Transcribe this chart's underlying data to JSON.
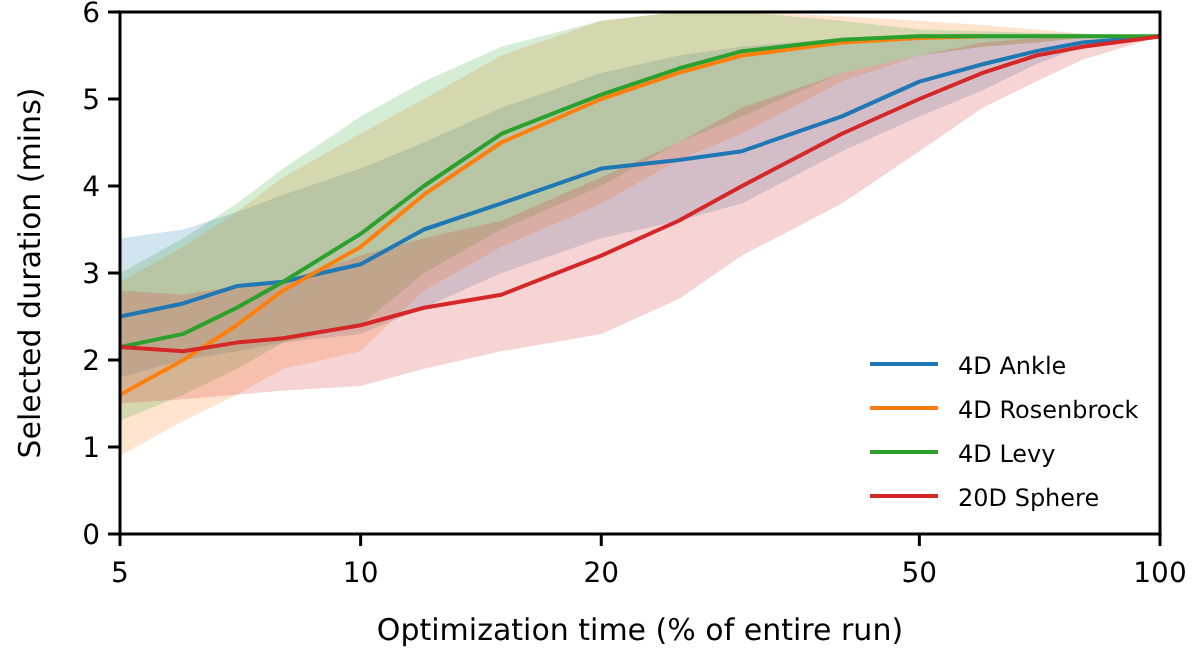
{
  "chart_data": {
    "type": "line",
    "xlabel": "Optimization time (% of entire run)",
    "ylabel": "Selected duration (mins)",
    "log": "x",
    "xlim": [
      5,
      100
    ],
    "xticks": [
      5,
      10,
      20,
      50,
      100
    ],
    "ylim": [
      0,
      6
    ],
    "yticks": [
      0,
      1,
      2,
      3,
      4,
      5,
      6
    ],
    "grid": false,
    "legend": "bottom right",
    "x": [
      5,
      6,
      7,
      8,
      10,
      12,
      15,
      20,
      25,
      30,
      40,
      50,
      60,
      70,
      80,
      100
    ],
    "series": [
      {
        "name": "4D Ankle",
        "color": "#1f77b4",
        "values": [
          2.5,
          2.65,
          2.85,
          2.9,
          3.1,
          3.5,
          3.8,
          4.2,
          4.3,
          4.4,
          4.8,
          5.2,
          5.4,
          5.55,
          5.65,
          5.72
        ],
        "lower": [
          1.8,
          2.0,
          2.1,
          2.2,
          2.3,
          2.6,
          3.0,
          3.4,
          3.6,
          3.8,
          4.4,
          4.8,
          5.1,
          5.4,
          5.6,
          5.72
        ],
        "upper": [
          3.4,
          3.5,
          3.7,
          3.9,
          4.2,
          4.5,
          4.9,
          5.3,
          5.5,
          5.6,
          5.7,
          5.75,
          5.75,
          5.75,
          5.75,
          5.72
        ]
      },
      {
        "name": "4D Rosenbrock",
        "color": "#ff7f0e",
        "values": [
          1.6,
          2.0,
          2.4,
          2.8,
          3.3,
          3.9,
          4.5,
          5.0,
          5.3,
          5.5,
          5.65,
          5.7,
          5.72,
          null,
          null,
          null
        ],
        "lower": [
          0.9,
          1.3,
          1.6,
          1.9,
          2.1,
          2.8,
          3.3,
          3.8,
          4.3,
          4.6,
          5.2,
          5.5,
          5.6,
          5.65,
          5.7,
          5.72
        ],
        "upper": [
          2.9,
          3.3,
          3.7,
          4.1,
          4.6,
          5.0,
          5.5,
          5.9,
          6.0,
          6.0,
          5.95,
          5.9,
          5.85,
          5.8,
          5.75,
          5.72
        ]
      },
      {
        "name": "4D Levy",
        "color": "#2ca02c",
        "values": [
          2.15,
          2.3,
          2.6,
          2.9,
          3.45,
          4.0,
          4.6,
          5.05,
          5.35,
          5.55,
          5.68,
          5.72,
          5.72,
          5.72,
          5.72,
          5.72
        ],
        "lower": [
          1.3,
          1.6,
          1.9,
          2.2,
          2.4,
          3.0,
          3.5,
          4.0,
          4.5,
          4.8,
          5.3,
          5.5,
          5.6,
          5.65,
          5.7,
          5.72
        ],
        "upper": [
          3.0,
          3.4,
          3.8,
          4.2,
          4.8,
          5.2,
          5.6,
          5.9,
          6.0,
          6.0,
          5.9,
          5.8,
          5.78,
          5.76,
          5.75,
          5.72
        ]
      },
      {
        "name": "20D Sphere",
        "color": "#d62728",
        "values": [
          2.15,
          2.1,
          2.2,
          2.25,
          2.4,
          2.6,
          2.75,
          3.2,
          3.6,
          4.0,
          4.6,
          5.0,
          5.3,
          5.5,
          5.6,
          5.72
        ],
        "lower": [
          1.5,
          1.55,
          1.6,
          1.65,
          1.7,
          1.9,
          2.1,
          2.3,
          2.7,
          3.2,
          3.8,
          4.4,
          4.9,
          5.2,
          5.45,
          5.72
        ],
        "upper": [
          2.8,
          2.75,
          2.85,
          2.9,
          3.2,
          3.4,
          3.6,
          4.1,
          4.5,
          4.9,
          5.3,
          5.5,
          5.65,
          5.7,
          5.72,
          5.72
        ]
      }
    ]
  }
}
